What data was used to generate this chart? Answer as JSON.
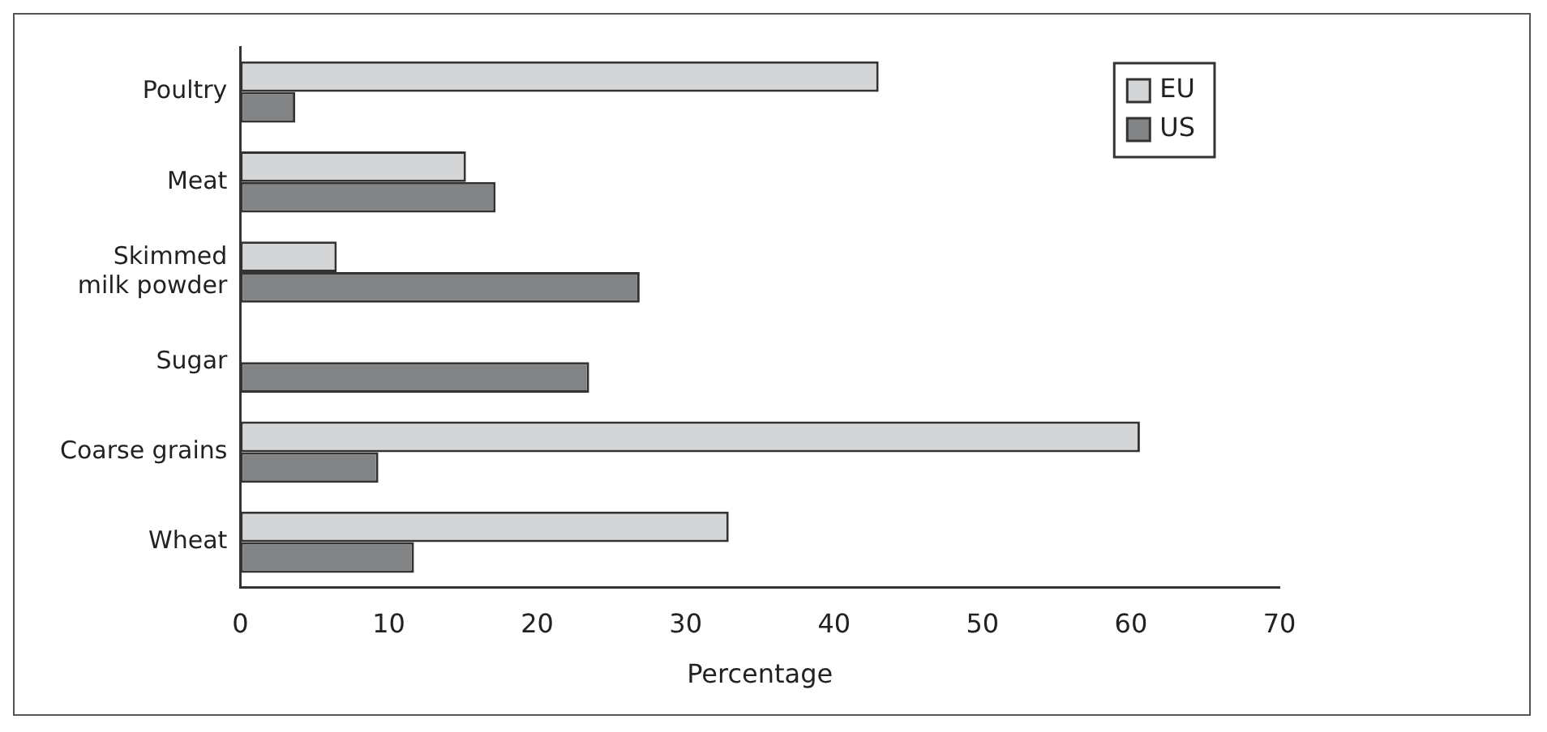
{
  "chart_data": {
    "type": "bar",
    "orientation": "horizontal",
    "xlabel": "Percentage",
    "categories": [
      "Poultry",
      "Meat",
      "Skimmed milk powder",
      "Sugar",
      "Coarse grains",
      "Wheat"
    ],
    "series": [
      {
        "name": "EU",
        "color": "#d4d5d7",
        "values": [
          43,
          15.2,
          6.5,
          0,
          60.6,
          32.9
        ]
      },
      {
        "name": "US",
        "color": "#828385",
        "values": [
          3.7,
          17.2,
          26.9,
          23.5,
          9.3,
          11.7
        ]
      }
    ],
    "xlim": [
      0,
      70
    ],
    "xticks": [
      0,
      10,
      20,
      30,
      40,
      50,
      60,
      70
    ],
    "grid": false,
    "legend": "top right"
  }
}
